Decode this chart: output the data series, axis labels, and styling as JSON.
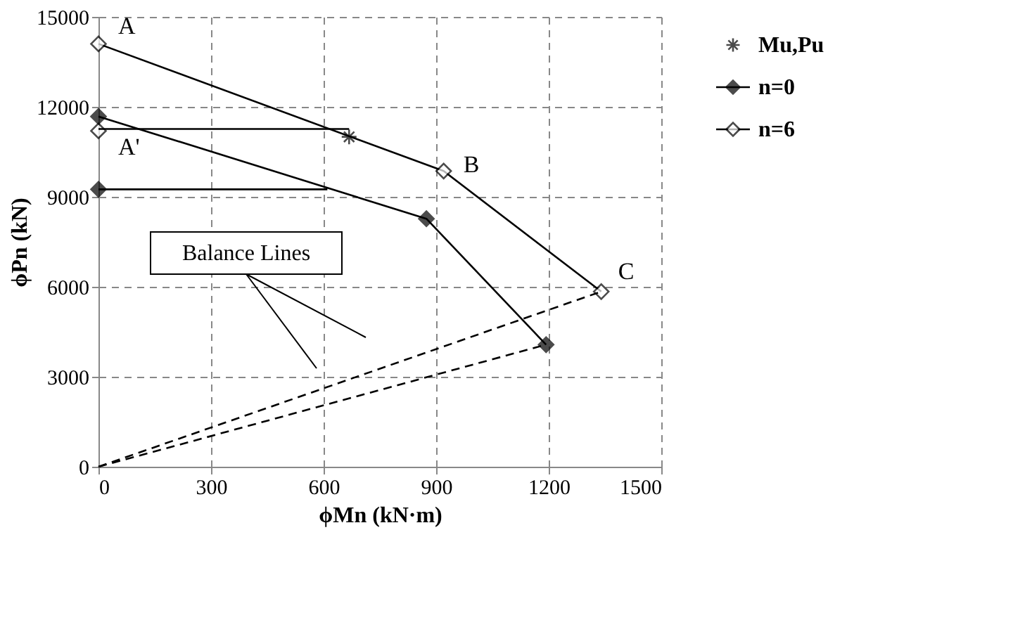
{
  "chart_data": {
    "type": "line",
    "xlabel": "ϕMn (kN·m)",
    "ylabel": "ϕPn (kN)",
    "xlim": [
      0,
      1500
    ],
    "xticks": [
      0,
      300,
      600,
      900,
      1200,
      1500
    ],
    "ylim": [
      0,
      15000
    ],
    "yticks": [
      0,
      3000,
      6000,
      9000,
      12000,
      15000
    ],
    "grid": true,
    "legend": "right",
    "series": [
      {
        "name": "Mu,Pu",
        "type": "scatter",
        "x": [
          668
        ],
        "values": [
          11000
        ],
        "color": "#000000",
        "marker": "cross"
      },
      {
        "name": "n=0",
        "x": [
          0,
          874,
          1193
        ],
        "values": [
          11680,
          8270,
          4070
        ],
        "color": "#000000",
        "marker": "diamond"
      },
      {
        "name": "n=6",
        "x": [
          0,
          920,
          1340
        ],
        "values": [
          14100,
          9860,
          5840
        ],
        "color": "#000000",
        "colors": [
          "#ffffff",
          "#ffffff",
          "#ffffff"
        ],
        "marker": "diamond"
      },
      {
        "type": "scatter",
        "x": [
          0
        ],
        "values": [
          11200
        ],
        "color": "#000000",
        "colors": [
          "#ffffff"
        ],
        "marker": "diamond"
      },
      {
        "x": [
          0,
          610
        ],
        "values": [
          9250,
          9250
        ],
        "color": "#000000",
        "colors": [
          "#000000",
          null
        ],
        "marker": "diamond"
      },
      {
        "x": [
          0,
          668
        ],
        "values": [
          11260,
          11260
        ],
        "color": "#000000",
        "marker": "none"
      },
      {
        "x": [
          1340,
          0
        ],
        "values": [
          5840,
          0
        ],
        "color": "#000000",
        "marker": "none",
        "line_style": "dashed"
      },
      {
        "x": [
          1193,
          0
        ],
        "values": [
          4070,
          0
        ],
        "color": "#000000",
        "marker": "none",
        "line_style": "dashed"
      }
    ],
    "annotations": [
      {
        "text": "A",
        "x": 0,
        "y": 14100
      },
      {
        "text": "A'",
        "x": 0,
        "y": 11200
      },
      {
        "text": "B",
        "x": 920,
        "y": 9860
      },
      {
        "text": "C",
        "x": 1340,
        "y": 5840
      },
      "Balance Lines"
    ]
  }
}
